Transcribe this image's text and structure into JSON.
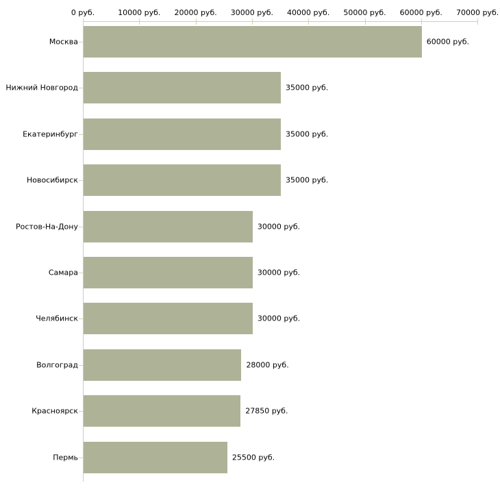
{
  "chart_data": {
    "type": "bar",
    "orientation": "horizontal",
    "categories": [
      "Москва",
      "Нижний Новгород",
      "Екатеринбург",
      "Новосибирск",
      "Ростов-На-Дону",
      "Самара",
      "Челябинск",
      "Волгоград",
      "Красноярск",
      "Пермь"
    ],
    "values": [
      60000,
      35000,
      35000,
      35000,
      30000,
      30000,
      30000,
      28000,
      27850,
      25500
    ],
    "value_labels": [
      "60000 руб.",
      "35000 руб.",
      "35000 руб.",
      "35000 руб.",
      "30000 руб.",
      "30000 руб.",
      "30000 руб.",
      "28000 руб.",
      "27850 руб.",
      "25500 руб."
    ],
    "x_axis": {
      "position": "top",
      "unit": "руб.",
      "range": [
        0,
        70000
      ],
      "tick_values": [
        0,
        10000,
        20000,
        30000,
        40000,
        50000,
        60000,
        70000
      ],
      "tick_labels": [
        "0 руб.",
        "10000 руб.",
        "20000 руб.",
        "30000 руб.",
        "40000 руб.",
        "50000 руб.",
        "60000 руб.",
        "70000 руб."
      ]
    },
    "grid": false,
    "legend": "none",
    "style": {
      "bar_color": "#aeb397",
      "axis_color": "#cbcbcb",
      "tick_color": "#d2d3ae",
      "text_color": "#000000",
      "background_color": "#ffffff"
    }
  }
}
